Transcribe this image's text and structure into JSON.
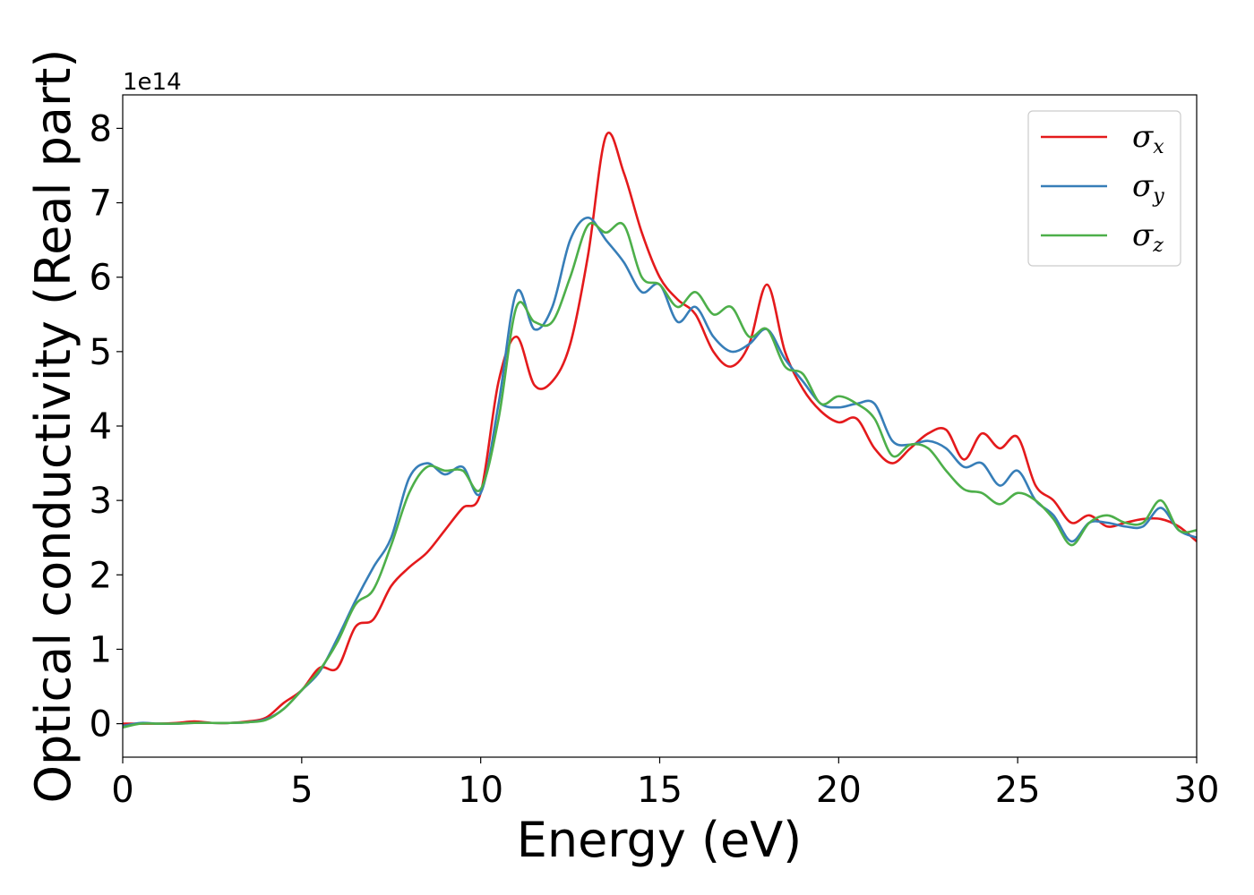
{
  "chart_data": {
    "type": "line",
    "xlabel": "Energy (eV)",
    "ylabel": "Optical conductivity (Real part)",
    "y_offset_label": "1e14",
    "y_scale_factor": 100000000000000.0,
    "xlim": [
      0,
      30
    ],
    "ylim": [
      -0.45,
      8.45
    ],
    "x_ticks": [
      0,
      5,
      10,
      15,
      20,
      25,
      30
    ],
    "y_ticks": [
      0,
      1,
      2,
      3,
      4,
      5,
      6,
      7,
      8
    ],
    "grid": false,
    "legend_position": "upper-right",
    "x": [
      0,
      0.5,
      1,
      1.5,
      2,
      2.5,
      3,
      3.5,
      4,
      4.5,
      5,
      5.5,
      6,
      6.5,
      7,
      7.5,
      8,
      8.5,
      9,
      9.5,
      10,
      10.5,
      11,
      11.5,
      12,
      12.5,
      13,
      13.5,
      14,
      14.5,
      15,
      15.5,
      16,
      16.5,
      17,
      17.5,
      18,
      18.5,
      19,
      19.5,
      20,
      20.5,
      21,
      21.5,
      22,
      22.5,
      23,
      23.5,
      24,
      24.5,
      25,
      25.5,
      26,
      26.5,
      27,
      27.5,
      28,
      28.5,
      29,
      29.5,
      30
    ],
    "series": [
      {
        "name": "σ",
        "subscript": "x",
        "color": "#e41a1c",
        "values": [
          0.0,
          0.0,
          0.0,
          0.01,
          0.03,
          0.01,
          0.01,
          0.03,
          0.08,
          0.28,
          0.45,
          0.75,
          0.75,
          1.3,
          1.4,
          1.85,
          2.1,
          2.3,
          2.6,
          2.9,
          3.1,
          4.6,
          5.2,
          4.55,
          4.6,
          5.1,
          6.3,
          7.9,
          7.4,
          6.6,
          6.0,
          5.7,
          5.5,
          5.0,
          4.8,
          5.1,
          5.9,
          5.0,
          4.5,
          4.2,
          4.05,
          4.1,
          3.7,
          3.5,
          3.7,
          3.9,
          3.95,
          3.55,
          3.9,
          3.7,
          3.85,
          3.2,
          3.0,
          2.7,
          2.8,
          2.65,
          2.7,
          2.75,
          2.75,
          2.65,
          2.45
        ]
      },
      {
        "name": "σ",
        "subscript": "y",
        "color": "#377eb8",
        "values": [
          -0.03,
          0.01,
          0.0,
          0.0,
          0.01,
          0.01,
          0.01,
          0.02,
          0.06,
          0.2,
          0.45,
          0.7,
          1.15,
          1.65,
          2.1,
          2.5,
          3.3,
          3.5,
          3.35,
          3.45,
          3.1,
          4.3,
          5.8,
          5.3,
          5.6,
          6.5,
          6.8,
          6.5,
          6.2,
          5.8,
          5.9,
          5.4,
          5.6,
          5.2,
          5.0,
          5.1,
          5.3,
          4.9,
          4.6,
          4.3,
          4.25,
          4.3,
          4.3,
          3.8,
          3.75,
          3.8,
          3.7,
          3.45,
          3.5,
          3.2,
          3.4,
          3.0,
          2.8,
          2.45,
          2.7,
          2.7,
          2.65,
          2.65,
          2.9,
          2.6,
          2.5
        ]
      },
      {
        "name": "σ",
        "subscript": "z",
        "color": "#4daf4a",
        "values": [
          -0.05,
          0.0,
          0.0,
          0.0,
          0.01,
          0.01,
          0.01,
          0.02,
          0.05,
          0.2,
          0.45,
          0.72,
          1.1,
          1.6,
          1.8,
          2.4,
          3.1,
          3.45,
          3.4,
          3.4,
          3.15,
          4.1,
          5.6,
          5.4,
          5.4,
          6.0,
          6.7,
          6.6,
          6.7,
          6.0,
          5.9,
          5.6,
          5.8,
          5.5,
          5.6,
          5.2,
          5.3,
          4.8,
          4.7,
          4.3,
          4.4,
          4.3,
          4.1,
          3.6,
          3.75,
          3.7,
          3.4,
          3.15,
          3.1,
          2.95,
          3.1,
          3.0,
          2.75,
          2.4,
          2.7,
          2.8,
          2.7,
          2.7,
          3.0,
          2.6,
          2.6
        ]
      }
    ]
  }
}
